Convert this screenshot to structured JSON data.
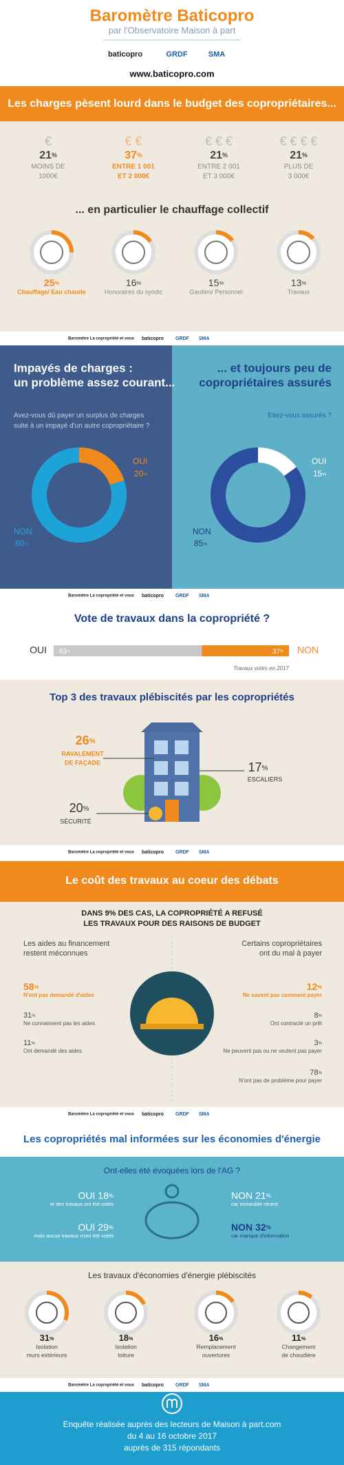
{
  "percent_sign": "%",
  "header": {
    "title": "Baromètre Baticopro",
    "subtitle": "par l'Observatoire Maison à part",
    "logos": [
      "baticopro",
      "GRDF",
      "SMA"
    ],
    "url": "www.baticopro.com"
  },
  "footer_strip": {
    "text": "Baromètre La copropriété et vous",
    "logos": [
      "baticopro",
      "GRDF",
      "SMA"
    ]
  },
  "charges": {
    "title": "Les charges pèsent lourd dans le budget des copropriétaires...",
    "items": [
      {
        "symbol": "€",
        "value": 21,
        "label": [
          "MOINS DE",
          "1000€"
        ]
      },
      {
        "symbol": "€ €",
        "value": 37,
        "label": [
          "ENTRE 1 001",
          "ET 2 000€"
        ]
      },
      {
        "symbol": "€ € €",
        "value": 21,
        "label": [
          "ENTRE 2 001",
          "ET 3 000€"
        ]
      },
      {
        "symbol": "€ € € €",
        "value": 21,
        "label": [
          "PLUS DE",
          "3 000€"
        ]
      }
    ]
  },
  "heating": {
    "title": "... en particulier le chauffage collectif",
    "items": [
      {
        "value": 25,
        "label": "Chauffage/ Eau chaude"
      },
      {
        "value": 16,
        "label": "Honoraires du syndic"
      },
      {
        "value": 15,
        "label": "Gardien/ Personnel"
      },
      {
        "value": 13,
        "label": "Travaux"
      }
    ]
  },
  "unpaid": {
    "title": [
      "Impayés de charges :",
      "un problème assez courant..."
    ],
    "question": [
      "Avez-vous dû payer un surplus de charges",
      "suite à un impayé d'un autre copropriétaire ?"
    ],
    "segments": [
      {
        "label": "OUI",
        "value": 20
      },
      {
        "label": "NON",
        "value": 80
      }
    ]
  },
  "insured": {
    "title": [
      "... et toujours peu de",
      "copropriétaires assurés"
    ],
    "question": "Etiez-vous assurés ?",
    "segments": [
      {
        "label": "OUI",
        "value": 15
      },
      {
        "label": "NON",
        "value": 85
      }
    ]
  },
  "vote": {
    "title": "Vote de travaux dans la copropriété ?",
    "segments": [
      {
        "label": "OUI",
        "value": 63
      },
      {
        "label": "NON",
        "value": 37
      }
    ],
    "note": "Travaux votés en 2017"
  },
  "top3": {
    "title": "Top 3 des travaux plébiscités par les copropriétés",
    "items": [
      {
        "value": 26,
        "label": [
          "RAVALEMENT",
          "DE FAÇADE"
        ]
      },
      {
        "value": 17,
        "label": [
          "ESCALIERS"
        ]
      },
      {
        "value": 20,
        "label": [
          "SÉCURITÉ"
        ]
      }
    ]
  },
  "cost": {
    "title": "Le coût des travaux au coeur des débats",
    "headline": [
      "DANS 9% DES CAS, LA COPROPRIÉTÉ A REFUSÉ",
      "LES TRAVAUX POUR DES RAISONS DE BUDGET"
    ],
    "left": {
      "title": [
        "Les aides au financement",
        "restent méconnues"
      ],
      "items": [
        {
          "value": 58,
          "label": "N'ont pas demandé d'aides"
        },
        {
          "value": 31,
          "label": "Ne connaissent pas les aides"
        },
        {
          "value": 11,
          "label": "Ont demandé des aides"
        }
      ]
    },
    "right": {
      "title": [
        "Certains copropriétaires",
        "ont du mal à payer"
      ],
      "items": [
        {
          "value": 12,
          "label": "Ne savent pas comment payer"
        },
        {
          "value": 8,
          "label": "Ont contracté un prêt"
        },
        {
          "value": 3,
          "label": "Ne peuvent pas ou ne veulent pas payer"
        },
        {
          "value": 78,
          "label": "N'ont pas de problème pour payer"
        }
      ]
    }
  },
  "energy": {
    "title": "Les copropriétés mal informées sur les économies d'énergie",
    "question": "Ont-elles été évoquées lors de l'AG ?",
    "answers": [
      {
        "label": "OUI",
        "value": 18,
        "note": "et des travaux ont été votés"
      },
      {
        "label": "OUI",
        "value": 29,
        "note": "mais aucun travaux n'ont été votés"
      },
      {
        "label": "NON",
        "value": 21,
        "note": "car immeuble récent"
      },
      {
        "label": "NON",
        "value": 32,
        "note": "car manque d'information"
      }
    ],
    "works_title": "Les travaux d'économies d'énergie plébiscités",
    "works": [
      {
        "value": 31,
        "label": [
          "Isolation",
          "murs extérieurs"
        ]
      },
      {
        "value": 18,
        "label": [
          "Isolation",
          "toiture"
        ]
      },
      {
        "value": 16,
        "label": [
          "Remplacement",
          "ouvertures"
        ]
      },
      {
        "value": 11,
        "label": [
          "Changement",
          "de chaudière"
        ]
      }
    ]
  },
  "survey": [
    "Enquête réalisée auprès des lecteurs de Maison à part.com",
    "du 4 au 16 octobre 2017",
    "auprès de 315 répondants"
  ]
}
